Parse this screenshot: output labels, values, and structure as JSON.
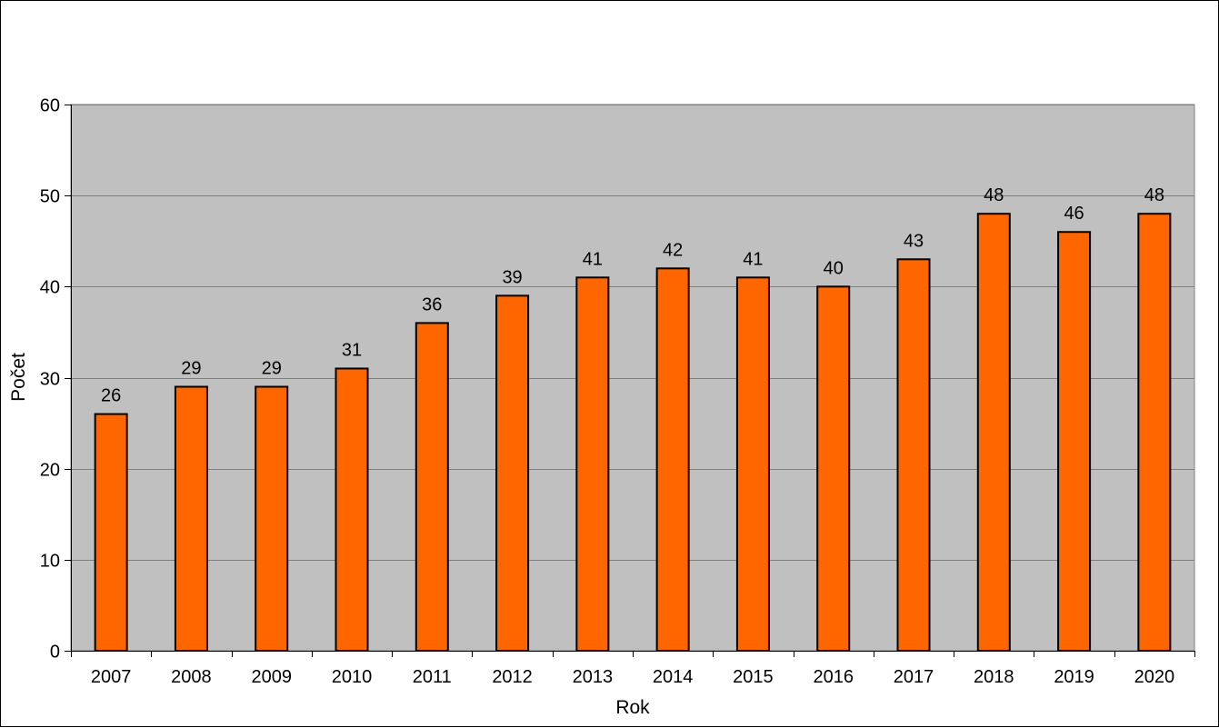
{
  "chart_data": {
    "type": "bar",
    "categories": [
      "2007",
      "2008",
      "2009",
      "2010",
      "2011",
      "2012",
      "2013",
      "2014",
      "2015",
      "2016",
      "2017",
      "2018",
      "2019",
      "2020"
    ],
    "values": [
      26,
      29,
      29,
      31,
      36,
      39,
      41,
      42,
      41,
      40,
      43,
      48,
      46,
      48
    ],
    "title": "",
    "xlabel": "Rok",
    "ylabel": "Počet",
    "ylim": [
      0,
      60
    ],
    "yticks": [
      0,
      10,
      20,
      30,
      40,
      50,
      60
    ],
    "grid": true,
    "legend": "none",
    "data_labels": true,
    "colors": {
      "bar_fill": "#ff6600",
      "bar_stroke": "#000000",
      "plot_background": "#c0c0c0",
      "gridline": "#808080"
    }
  }
}
